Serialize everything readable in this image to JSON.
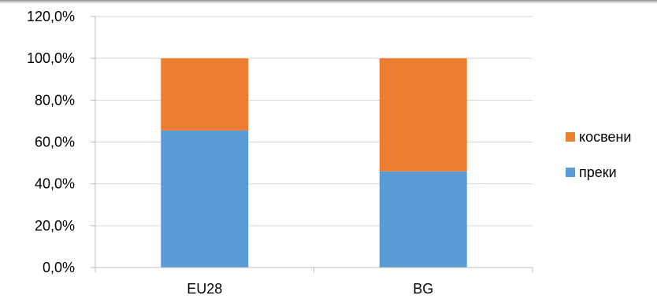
{
  "chart_data": {
    "type": "bar",
    "stacked": true,
    "categories": [
      "EU28",
      "BG"
    ],
    "series": [
      {
        "name": "преки",
        "values": [
          65.5,
          46.0
        ],
        "color": "#5B9BD5"
      },
      {
        "name": "косвени",
        "values": [
          34.5,
          54.0
        ],
        "color": "#ED7D31"
      }
    ],
    "ylim": [
      0,
      120
    ],
    "yticks": [
      0,
      20,
      40,
      60,
      80,
      100,
      120
    ],
    "ytick_labels": [
      "0,0%",
      "20,0%",
      "40,0%",
      "60,0%",
      "80,0%",
      "100,0%",
      "120,0%"
    ],
    "grid": true,
    "legend": {
      "position": "right",
      "entries": [
        "косвени",
        "преки"
      ]
    }
  }
}
